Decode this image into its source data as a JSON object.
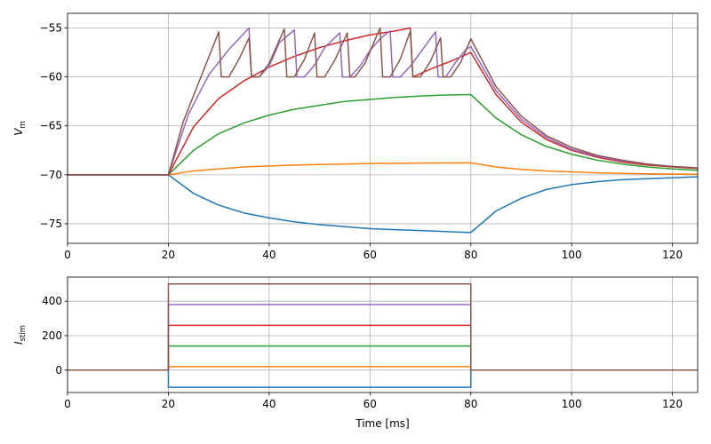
{
  "chart_data": [
    {
      "type": "line",
      "ylabel_main": "V",
      "ylabel_sub": "m",
      "xlabel": "",
      "xlim": [
        0,
        125
      ],
      "ylim": [
        -77,
        -53.5
      ],
      "xticks": [
        0,
        20,
        40,
        60,
        80,
        100,
        120
      ],
      "yticks": [
        -75,
        -70,
        -65,
        -60,
        -55
      ],
      "grid": true,
      "series": [
        {
          "color": "#1f77b4",
          "x": [
            0,
            20,
            25,
            30,
            35,
            40,
            45,
            50,
            55,
            60,
            65,
            70,
            75,
            80,
            85,
            90,
            95,
            100,
            105,
            110,
            115,
            120,
            125
          ],
          "y": [
            -70,
            -70,
            -71.9,
            -73.1,
            -73.9,
            -74.4,
            -74.8,
            -75.1,
            -75.3,
            -75.5,
            -75.6,
            -75.7,
            -75.8,
            -75.9,
            -73.7,
            -72.4,
            -71.5,
            -71.0,
            -70.7,
            -70.5,
            -70.4,
            -70.3,
            -70.2
          ]
        },
        {
          "color": "#ff7f0e",
          "x": [
            0,
            20,
            25,
            30,
            35,
            40,
            45,
            50,
            55,
            60,
            65,
            70,
            75,
            80,
            85,
            90,
            95,
            100,
            105,
            110,
            115,
            120,
            125
          ],
          "y": [
            -70,
            -70,
            -69.6,
            -69.4,
            -69.2,
            -69.1,
            -69.0,
            -68.95,
            -68.9,
            -68.85,
            -68.82,
            -68.8,
            -68.79,
            -68.78,
            -69.2,
            -69.45,
            -69.6,
            -69.7,
            -69.8,
            -69.85,
            -69.9,
            -69.92,
            -69.94
          ]
        },
        {
          "color": "#2ca02c",
          "x": [
            0,
            20,
            25,
            30,
            35,
            40,
            45,
            50,
            55,
            60,
            65,
            70,
            75,
            80,
            85,
            90,
            95,
            100,
            105,
            110,
            115,
            120,
            125
          ],
          "y": [
            -70,
            -70,
            -67.5,
            -65.8,
            -64.7,
            -63.9,
            -63.3,
            -62.9,
            -62.5,
            -62.3,
            -62.1,
            -61.95,
            -61.85,
            -61.8,
            -64.2,
            -65.9,
            -67.1,
            -67.9,
            -68.5,
            -68.9,
            -69.2,
            -69.4,
            -69.55
          ]
        },
        {
          "color": "#d62728",
          "x": [
            0,
            20,
            25,
            30,
            35,
            40,
            45,
            50,
            55,
            60,
            65,
            68,
            68.5,
            72,
            76,
            80,
            85,
            90,
            95,
            100,
            105,
            110,
            115,
            120,
            125
          ],
          "y": [
            -70,
            -70,
            -65.1,
            -62.2,
            -60.4,
            -59.0,
            -57.9,
            -57.0,
            -56.3,
            -55.7,
            -55.3,
            -55.0,
            -60,
            -59.2,
            -58.4,
            -57.5,
            -61.8,
            -64.6,
            -66.4,
            -67.5,
            -68.2,
            -68.7,
            -69.0,
            -69.2,
            -69.35
          ]
        },
        {
          "color": "#9467bd",
          "x": [
            0,
            20,
            24,
            28,
            32,
            36,
            36.5,
            38,
            40,
            42,
            45,
            45.5,
            47,
            49,
            51,
            54,
            54.5,
            56,
            58,
            60,
            62,
            64,
            64.5,
            66,
            68,
            70,
            73,
            73.5,
            75,
            77,
            79,
            80,
            85,
            90,
            95,
            100,
            105,
            110,
            115,
            120,
            125
          ],
          "y": [
            -70,
            -70,
            -63.8,
            -59.8,
            -57.2,
            -55.0,
            -60,
            -60,
            -58.9,
            -56.5,
            -55.2,
            -60,
            -60,
            -58.8,
            -57.0,
            -55.5,
            -60,
            -60,
            -58.9,
            -57.3,
            -56.1,
            -55.3,
            -60,
            -60,
            -58.9,
            -57.5,
            -55.4,
            -60,
            -60,
            -58.5,
            -57.2,
            -56.9,
            -61.4,
            -64.3,
            -66.2,
            -67.4,
            -68.1,
            -68.6,
            -68.9,
            -69.15,
            -69.3
          ]
        },
        {
          "color": "#8c564b",
          "x": [
            0,
            20,
            23,
            26,
            30,
            30.5,
            32,
            34,
            36,
            36.5,
            38,
            40,
            43,
            43.5,
            45,
            47,
            49,
            49.5,
            51,
            53,
            55.5,
            56,
            57,
            59,
            62,
            62.5,
            64,
            66,
            68,
            68.5,
            70,
            72,
            74,
            74.5,
            76,
            78,
            80,
            85,
            90,
            95,
            100,
            105,
            110,
            115,
            120,
            125
          ],
          "y": [
            -70,
            -70,
            -64.5,
            -60.6,
            -55.4,
            -60,
            -60,
            -58.2,
            -56.0,
            -60,
            -60,
            -58.6,
            -55.1,
            -60,
            -60,
            -58.2,
            -55.5,
            -60,
            -60,
            -58.3,
            -55.5,
            -60,
            -60,
            -58.6,
            -55.0,
            -60,
            -60,
            -58.2,
            -55.3,
            -60,
            -60,
            -58.4,
            -56.0,
            -60,
            -60,
            -58.5,
            -56.1,
            -61.0,
            -64.0,
            -66.0,
            -67.2,
            -68.0,
            -68.5,
            -68.9,
            -69.15,
            -69.3
          ]
        }
      ]
    },
    {
      "type": "line",
      "ylabel_main": "I",
      "ylabel_sub": "stim",
      "xlabel": "Time [ms]",
      "xlim": [
        0,
        125
      ],
      "ylim": [
        -130,
        540
      ],
      "xticks": [
        0,
        20,
        40,
        60,
        80,
        100,
        120
      ],
      "yticks": [
        0,
        200,
        400
      ],
      "grid": true,
      "series": [
        {
          "color": "#1f77b4",
          "x": [
            0,
            20,
            20,
            80,
            80,
            125
          ],
          "y": [
            0,
            0,
            -100,
            -100,
            0,
            0
          ]
        },
        {
          "color": "#ff7f0e",
          "x": [
            0,
            20,
            20,
            80,
            80,
            125
          ],
          "y": [
            0,
            0,
            20,
            20,
            0,
            0
          ]
        },
        {
          "color": "#2ca02c",
          "x": [
            0,
            20,
            20,
            80,
            80,
            125
          ],
          "y": [
            0,
            0,
            140,
            140,
            0,
            0
          ]
        },
        {
          "color": "#d62728",
          "x": [
            0,
            20,
            20,
            80,
            80,
            125
          ],
          "y": [
            0,
            0,
            260,
            260,
            0,
            0
          ]
        },
        {
          "color": "#9467bd",
          "x": [
            0,
            20,
            20,
            80,
            80,
            125
          ],
          "y": [
            0,
            0,
            380,
            380,
            0,
            0
          ]
        },
        {
          "color": "#8c564b",
          "x": [
            0,
            20,
            20,
            80,
            80,
            125
          ],
          "y": [
            0,
            0,
            500,
            500,
            0,
            0
          ]
        }
      ]
    }
  ]
}
